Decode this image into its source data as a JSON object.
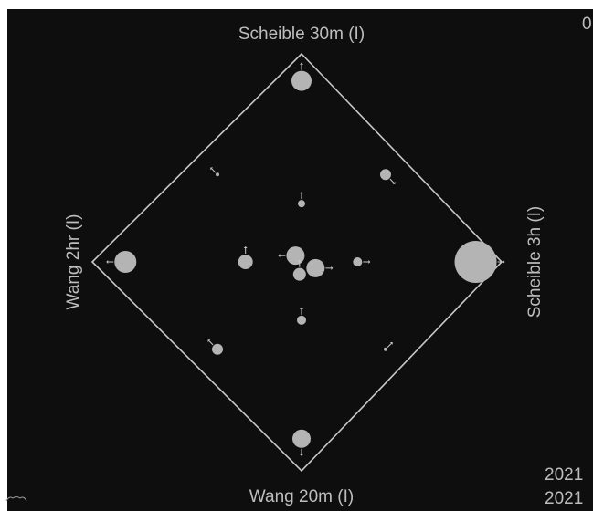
{
  "colors": {
    "background": "#0e0e0e",
    "outline": "#c8c8c8",
    "glyph_fill": "#b4b4b4",
    "text": "#bdbdbd",
    "page": "#ffffff"
  },
  "corner": {
    "top_right": "0",
    "bottom_right_line1": "2021",
    "bottom_right_line2": "2021"
  },
  "chart_data": {
    "type": "scatter",
    "description_of_axes": "diamond plot: four directional axes",
    "axes": {
      "top": "Scheible 30m (I)",
      "bottom": "Wang 20m (I)",
      "left": "Wang 2hr (I)",
      "right": "Scheible 3h (I)"
    },
    "xlim": [
      -1,
      1
    ],
    "ylim": [
      -1,
      1
    ],
    "grid": false,
    "legend": "none",
    "points": [
      {
        "x": 0.0,
        "y": 0.87,
        "r": 11,
        "arrow": "up"
      },
      {
        "x": -0.88,
        "y": 0.0,
        "r": 12,
        "arrow": "left"
      },
      {
        "x": 0.87,
        "y": 0.0,
        "r": 23,
        "arrow": "right"
      },
      {
        "x": 0.0,
        "y": -0.85,
        "r": 10,
        "arrow": "down"
      },
      {
        "x": -0.42,
        "y": 0.42,
        "r": 2,
        "arrow": "up-left"
      },
      {
        "x": 0.42,
        "y": 0.42,
        "r": 6,
        "arrow": "down-right"
      },
      {
        "x": -0.42,
        "y": -0.42,
        "r": 6,
        "arrow": "up-left"
      },
      {
        "x": 0.42,
        "y": -0.42,
        "r": 2,
        "arrow": "up-right"
      },
      {
        "x": 0.0,
        "y": 0.28,
        "r": 4,
        "arrow": "up"
      },
      {
        "x": -0.28,
        "y": 0.0,
        "r": 8,
        "arrow": "up"
      },
      {
        "x": 0.28,
        "y": 0.0,
        "r": 5,
        "arrow": "right"
      },
      {
        "x": 0.0,
        "y": -0.28,
        "r": 5,
        "arrow": "up"
      },
      {
        "x": -0.03,
        "y": 0.03,
        "r": 10,
        "arrow": "left"
      },
      {
        "x": 0.07,
        "y": -0.03,
        "r": 10,
        "arrow": "right"
      },
      {
        "x": -0.01,
        "y": -0.06,
        "r": 7,
        "arrow": "up"
      }
    ]
  }
}
